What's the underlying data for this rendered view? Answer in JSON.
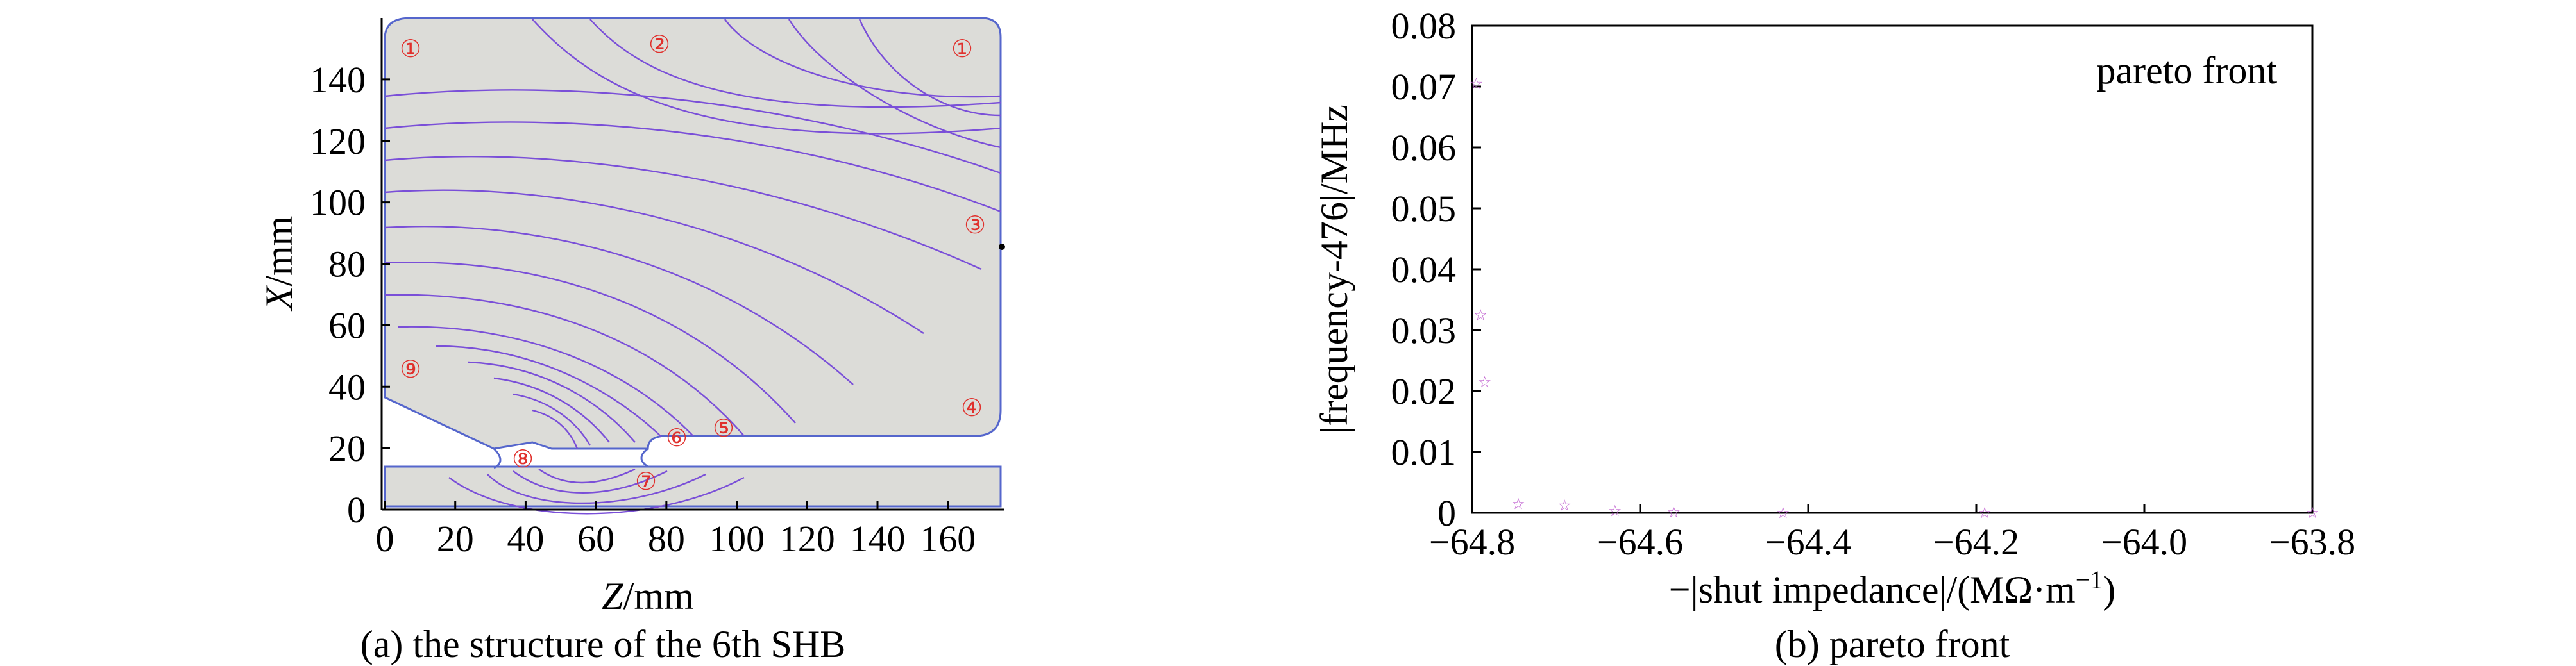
{
  "chart_data": [
    {
      "type": "diagram",
      "panel": "a",
      "caption": "(a) the structure of the 6th SHB",
      "xlabel_italic": "Z",
      "xlabel_unit": "/mm",
      "ylabel_italic": "X",
      "ylabel_unit": "/mm",
      "xlim": [
        0,
        175
      ],
      "ylim": [
        0,
        160
      ],
      "xticks": [
        "0",
        "20",
        "40",
        "60",
        "80",
        "100",
        "120",
        "140",
        "160"
      ],
      "yticks": [
        "0",
        "20",
        "40",
        "60",
        "80",
        "100",
        "120",
        "140"
      ],
      "region_labels": [
        "①",
        "②",
        "①",
        "③",
        "④",
        "⑤",
        "⑥",
        "⑦",
        "⑧",
        "⑨"
      ],
      "colors": {
        "outline": "#5566cc",
        "fill": "#dcdcd8",
        "contour": "#7a4fd8",
        "label": "#e0302c"
      }
    },
    {
      "type": "scatter",
      "panel": "b",
      "caption": "(b) pareto front",
      "legend": "pareto front",
      "xlabel": "−|shut impedance|/(MΩ·m",
      "xlabel_sup": "−1",
      "xlabel_end": ")",
      "ylabel": "|frequency-476|/MHz",
      "xlim": [
        -64.8,
        -63.8
      ],
      "ylim": [
        0,
        0.08
      ],
      "xticks": [
        "−64.8",
        "−64.6",
        "−64.4",
        "−64.2",
        "−64.0",
        "−63.8"
      ],
      "yticks": [
        "0",
        "0.01",
        "0.02",
        "0.03",
        "0.04",
        "0.05",
        "0.06",
        "0.07",
        "0.08"
      ],
      "marker_color": "#c060d0",
      "points": [
        {
          "x": -64.795,
          "y": 0.0705
        },
        {
          "x": -64.79,
          "y": 0.0325
        },
        {
          "x": -64.785,
          "y": 0.0215
        },
        {
          "x": -64.745,
          "y": 0.0015
        },
        {
          "x": -64.69,
          "y": 0.0012
        },
        {
          "x": -64.63,
          "y": 0.0003
        },
        {
          "x": -64.56,
          "y": 0.0001
        },
        {
          "x": -64.43,
          "y": 0.0
        },
        {
          "x": -64.19,
          "y": 0.0
        },
        {
          "x": -63.8,
          "y": 0.0
        }
      ]
    }
  ]
}
